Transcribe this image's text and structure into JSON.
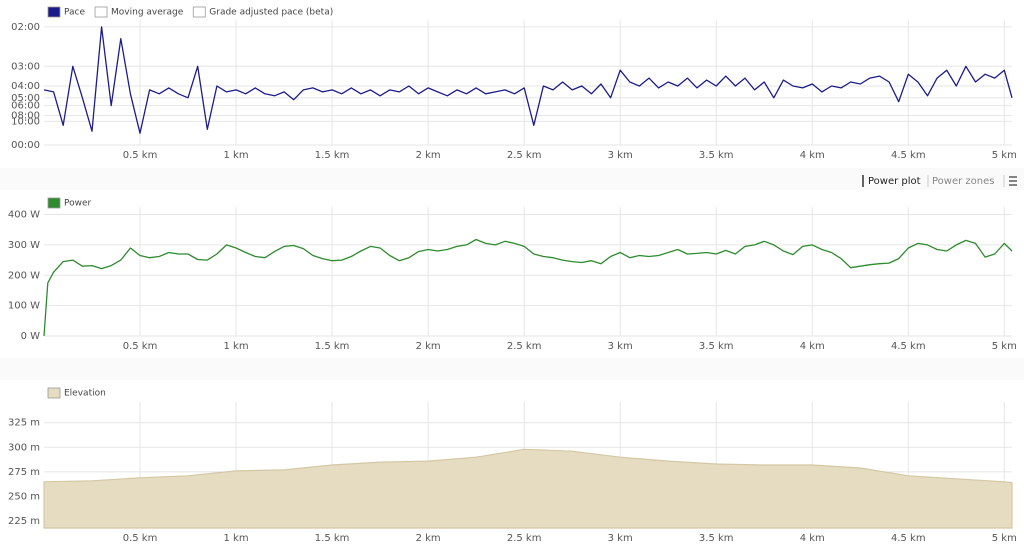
{
  "chart_data": [
    {
      "type": "line",
      "legend": [
        {
          "name": "Pace",
          "color": "#1c1c8c"
        },
        {
          "name": "Moving average",
          "color": "#ffffff"
        },
        {
          "name": "Grade adjusted pace (beta)",
          "color": "#ffffff"
        }
      ],
      "x": [
        0,
        0.05,
        0.1,
        0.15,
        0.2,
        0.25,
        0.3,
        0.35,
        0.4,
        0.45,
        0.5,
        0.55,
        0.6,
        0.65,
        0.7,
        0.75,
        0.8,
        0.85,
        0.9,
        0.95,
        1.0,
        1.05,
        1.1,
        1.15,
        1.2,
        1.25,
        1.3,
        1.35,
        1.4,
        1.45,
        1.5,
        1.55,
        1.6,
        1.65,
        1.7,
        1.75,
        1.8,
        1.85,
        1.9,
        1.95,
        2.0,
        2.05,
        2.1,
        2.15,
        2.2,
        2.25,
        2.3,
        2.35,
        2.4,
        2.45,
        2.5,
        2.55,
        2.6,
        2.65,
        2.7,
        2.75,
        2.8,
        2.85,
        2.9,
        2.95,
        3.0,
        3.05,
        3.1,
        3.15,
        3.2,
        3.25,
        3.3,
        3.35,
        3.4,
        3.45,
        3.5,
        3.55,
        3.6,
        3.65,
        3.7,
        3.75,
        3.8,
        3.85,
        3.9,
        3.95,
        4.0,
        4.05,
        4.1,
        4.15,
        4.2,
        4.25,
        4.3,
        4.35,
        4.4,
        4.45,
        4.5,
        4.55,
        4.6,
        4.65,
        4.7,
        4.75,
        4.8,
        4.85,
        4.9,
        4.95,
        5.0,
        5.04
      ],
      "series": [
        {
          "name": "Pace",
          "color": "#1c1c8c",
          "values": [
            14,
            13.5,
            5,
            20,
            12,
            3.5,
            30,
            10,
            27,
            13,
            3,
            14,
            13,
            14.5,
            13,
            12,
            20,
            4,
            15,
            13.5,
            14,
            13,
            14.5,
            13,
            12.5,
            13.5,
            11.5,
            14,
            14.5,
            13.5,
            14,
            13,
            14.5,
            13,
            14,
            12.5,
            14,
            13.5,
            15,
            13,
            14.5,
            13.5,
            12.5,
            14,
            13,
            14.5,
            13,
            13.5,
            14,
            13,
            14.5,
            5,
            15,
            14,
            16,
            14,
            15,
            13,
            15.5,
            12,
            19,
            16,
            15,
            17,
            14.5,
            16,
            15,
            17,
            14.5,
            16.5,
            15,
            17.5,
            15,
            17,
            14,
            16,
            12,
            16.5,
            15,
            14.5,
            15.5,
            13.5,
            15,
            14.5,
            16,
            15.5,
            17,
            17.5,
            16,
            11,
            18,
            16,
            12.5,
            17,
            19,
            15,
            20,
            16,
            18,
            17,
            19,
            12
          ]
        }
      ],
      "xlim": [
        0,
        5.04
      ],
      "xticks": [
        {
          "value": 0.5,
          "label": "0.5 km"
        },
        {
          "value": 1,
          "label": "1 km"
        },
        {
          "value": 1.5,
          "label": "1.5 km"
        },
        {
          "value": 2,
          "label": "2 km"
        },
        {
          "value": 2.5,
          "label": "2.5 km"
        },
        {
          "value": 3,
          "label": "3 km"
        },
        {
          "value": 3.5,
          "label": "3.5 km"
        },
        {
          "value": 4,
          "label": "4 km"
        },
        {
          "value": 4.5,
          "label": "4.5 km"
        },
        {
          "value": 5,
          "label": "5 km"
        }
      ],
      "ylim": [
        0,
        31
      ],
      "yticks": [
        {
          "value": 30,
          "label": "02:00"
        },
        {
          "value": 20,
          "label": "03:00"
        },
        {
          "value": 15,
          "label": "04:00"
        },
        {
          "value": 12,
          "label": "05:00"
        },
        {
          "value": 10,
          "label": "06:00"
        },
        {
          "value": 7.5,
          "label": "08:00"
        },
        {
          "value": 6,
          "label": "10:00"
        },
        {
          "value": 0,
          "label": "00:00"
        }
      ],
      "grid": true
    },
    {
      "type": "line",
      "x": [
        0,
        0.02,
        0.05,
        0.1,
        0.15,
        0.2,
        0.25,
        0.3,
        0.35,
        0.4,
        0.45,
        0.5,
        0.55,
        0.6,
        0.65,
        0.7,
        0.75,
        0.8,
        0.85,
        0.9,
        0.95,
        1.0,
        1.05,
        1.1,
        1.15,
        1.2,
        1.25,
        1.3,
        1.35,
        1.4,
        1.45,
        1.5,
        1.55,
        1.6,
        1.65,
        1.7,
        1.75,
        1.8,
        1.85,
        1.9,
        1.95,
        2.0,
        2.05,
        2.1,
        2.15,
        2.2,
        2.25,
        2.3,
        2.35,
        2.4,
        2.45,
        2.5,
        2.55,
        2.6,
        2.65,
        2.7,
        2.75,
        2.8,
        2.85,
        2.9,
        2.95,
        3.0,
        3.05,
        3.1,
        3.15,
        3.2,
        3.25,
        3.3,
        3.35,
        3.4,
        3.45,
        3.5,
        3.55,
        3.6,
        3.65,
        3.7,
        3.75,
        3.8,
        3.85,
        3.9,
        3.95,
        4.0,
        4.05,
        4.1,
        4.15,
        4.2,
        4.25,
        4.3,
        4.35,
        4.4,
        4.45,
        4.5,
        4.55,
        4.6,
        4.65,
        4.7,
        4.75,
        4.8,
        4.85,
        4.9,
        4.95,
        5.0,
        5.04
      ],
      "series": [
        {
          "name": "Power",
          "color": "#2e8b2e",
          "values": [
            0,
            175,
            210,
            245,
            250,
            230,
            232,
            222,
            232,
            250,
            290,
            265,
            258,
            262,
            275,
            270,
            270,
            252,
            250,
            270,
            300,
            290,
            275,
            262,
            258,
            278,
            295,
            298,
            288,
            265,
            255,
            248,
            250,
            262,
            280,
            295,
            290,
            265,
            248,
            258,
            278,
            285,
            280,
            285,
            295,
            300,
            318,
            305,
            300,
            312,
            305,
            295,
            270,
            262,
            258,
            250,
            245,
            242,
            248,
            238,
            262,
            275,
            258,
            265,
            262,
            265,
            275,
            285,
            270,
            272,
            275,
            270,
            282,
            270,
            295,
            300,
            312,
            300,
            280,
            268,
            295,
            300,
            285,
            275,
            255,
            225,
            230,
            235,
            238,
            240,
            255,
            290,
            305,
            300,
            285,
            280,
            300,
            315,
            305,
            260,
            270,
            305,
            280
          ]
        }
      ],
      "xlim": [
        0,
        5.04
      ],
      "xticks": [
        {
          "value": 0.5,
          "label": "0.5 km"
        },
        {
          "value": 1,
          "label": "1 km"
        },
        {
          "value": 1.5,
          "label": "1.5 km"
        },
        {
          "value": 2,
          "label": "2 km"
        },
        {
          "value": 2.5,
          "label": "2.5 km"
        },
        {
          "value": 3,
          "label": "3 km"
        },
        {
          "value": 3.5,
          "label": "3.5 km"
        },
        {
          "value": 4,
          "label": "4 km"
        },
        {
          "value": 4.5,
          "label": "4.5 km"
        },
        {
          "value": 5,
          "label": "5 km"
        }
      ],
      "ylim": [
        0,
        415
      ],
      "yticks": [
        {
          "value": 400,
          "label": "400 W"
        },
        {
          "value": 300,
          "label": "300 W"
        },
        {
          "value": 200,
          "label": "200 W"
        },
        {
          "value": 100,
          "label": "100 W"
        },
        {
          "value": 0,
          "label": "0 W"
        }
      ],
      "grid": true
    },
    {
      "type": "area",
      "x": [
        0,
        0.25,
        0.5,
        0.75,
        1.0,
        1.25,
        1.5,
        1.75,
        2.0,
        2.25,
        2.5,
        2.75,
        3.0,
        3.25,
        3.5,
        3.75,
        4.0,
        4.25,
        4.5,
        4.75,
        5.0,
        5.04
      ],
      "series": [
        {
          "name": "Elevation",
          "color": "#e6dcc2",
          "values": [
            265,
            266,
            269,
            271,
            276,
            277,
            282,
            285,
            286,
            290,
            298,
            296,
            290,
            286,
            283,
            282,
            282,
            279,
            271,
            268,
            265,
            264
          ]
        }
      ],
      "xlim": [
        0,
        5.04
      ],
      "xticks": [
        {
          "value": 0.5,
          "label": "0.5 km"
        },
        {
          "value": 1,
          "label": "1 km"
        },
        {
          "value": 1.5,
          "label": "1.5 km"
        },
        {
          "value": 2,
          "label": "2 km"
        },
        {
          "value": 2.5,
          "label": "2.5 km"
        },
        {
          "value": 3,
          "label": "3 km"
        },
        {
          "value": 3.5,
          "label": "3.5 km"
        },
        {
          "value": 4,
          "label": "4 km"
        },
        {
          "value": 4.5,
          "label": "4.5 km"
        },
        {
          "value": 5,
          "label": "5 km"
        }
      ],
      "ylim": [
        218,
        343
      ],
      "yticks": [
        {
          "value": 325,
          "label": "325 m"
        },
        {
          "value": 300,
          "label": "300 m"
        },
        {
          "value": 275,
          "label": "275 m"
        },
        {
          "value": 250,
          "label": "250 m"
        },
        {
          "value": 225,
          "label": "225 m"
        }
      ],
      "grid": true
    }
  ],
  "toolbar": {
    "items": [
      "Power plot",
      "Power zones"
    ]
  }
}
